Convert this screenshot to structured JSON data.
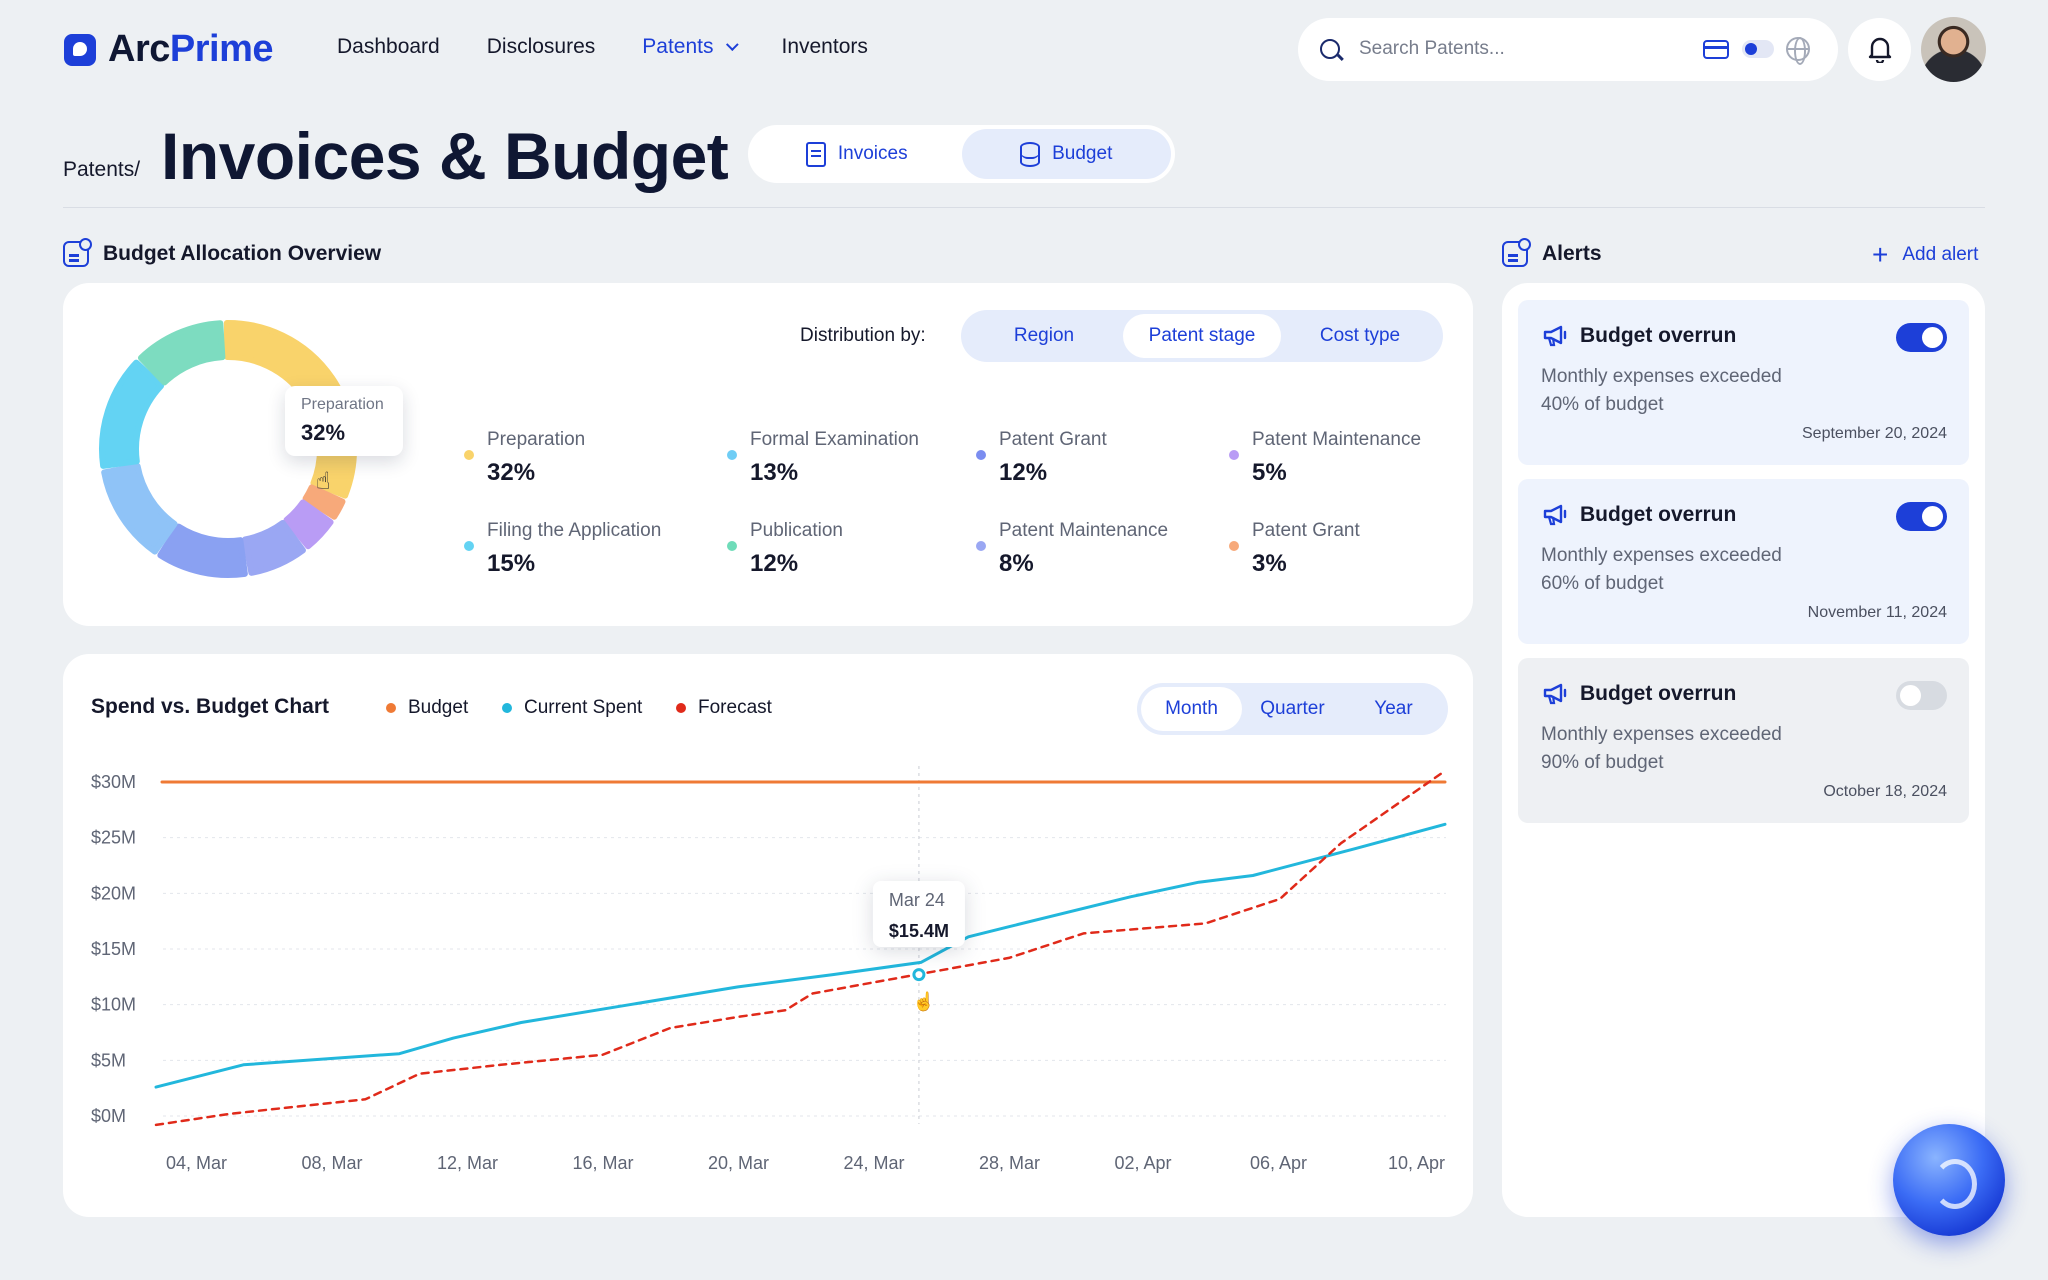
{
  "brand": {
    "name_a": "Arc",
    "name_b": "Prime"
  },
  "nav": {
    "items": [
      "Dashboard",
      "Disclosures",
      "Patents",
      "Inventors"
    ],
    "active": "Patents"
  },
  "search": {
    "placeholder": "Search Patents..."
  },
  "breadcrumb": "Patents/",
  "page_title": "Invoices & Budget",
  "view_tabs": [
    {
      "label": "Invoices",
      "icon": "document-icon"
    },
    {
      "label": "Budget",
      "icon": "database-icon",
      "selected": true
    }
  ],
  "allocation": {
    "heading": "Budget Allocation Overview",
    "distribution_label": "Distribution by:",
    "distribution_options": [
      "Region",
      "Patent stage",
      "Cost type"
    ],
    "distribution_selected": "Patent stage",
    "tooltip": {
      "label": "Preparation",
      "value": "32%"
    },
    "legend": [
      {
        "name": "Preparation",
        "pct": "32%",
        "color": "#f9d36b"
      },
      {
        "name": "Formal Examination",
        "pct": "13%",
        "color": "#6fcdf5"
      },
      {
        "name": "Patent Grant",
        "pct": "12%",
        "color": "#7b8df0"
      },
      {
        "name": "Patent Maintenance",
        "pct": "5%",
        "color": "#b99cf5"
      },
      {
        "name": "Filing the Application",
        "pct": "15%",
        "color": "#63d3f3"
      },
      {
        "name": "Publication",
        "pct": "12%",
        "color": "#6fdcb9"
      },
      {
        "name": "Patent Maintenance",
        "pct": "8%",
        "color": "#9aa7f3"
      },
      {
        "name": "Patent Grant",
        "pct": "3%",
        "color": "#f7a97a"
      }
    ]
  },
  "spend": {
    "title": "Spend vs. Budget Chart",
    "legend": [
      {
        "name": "Budget",
        "color": "#ef7a35"
      },
      {
        "name": "Current Spent",
        "color": "#22b7dc"
      },
      {
        "name": "Forecast",
        "color": "#e02a1a"
      }
    ],
    "range_options": [
      "Month",
      "Quarter",
      "Year"
    ],
    "range_selected": "Month",
    "tooltip": {
      "date": "Mar 24",
      "value": "$15.4M"
    }
  },
  "chart_data": {
    "type": "line",
    "title": "Spend vs. Budget Chart",
    "x_labels": [
      "04, Mar",
      "08, Mar",
      "12, Mar",
      "16, Mar",
      "20, Mar",
      "24, Mar",
      "28, Mar",
      "02, Apr",
      "06, Apr",
      "10, Apr"
    ],
    "y_ticks": [
      "$0M",
      "$5M",
      "$10M",
      "$15M",
      "$20M",
      "$25M",
      "$30M"
    ],
    "ylim": [
      0,
      30
    ],
    "series": [
      {
        "name": "Budget",
        "x": [
          0,
          9.4
        ],
        "values": [
          30,
          30
        ]
      },
      {
        "name": "Current Spent",
        "x": [
          -0.25,
          0.35,
          1.5,
          1.9,
          2.4,
          3.2,
          4.0,
          4.7,
          5.35,
          5.7,
          6.0,
          6.9,
          7.4,
          7.8,
          8.55,
          9.4
        ],
        "values": [
          2.6,
          4.6,
          5.6,
          7.0,
          8.4,
          10.0,
          11.6,
          12.7,
          13.8,
          16.1,
          17.0,
          19.7,
          21.0,
          21.6,
          24.0,
          26.2
        ]
      },
      {
        "name": "Forecast",
        "x": [
          -0.25,
          0.25,
          1.25,
          1.65,
          2.25,
          3.0,
          3.5,
          4.0,
          4.35,
          4.55,
          5.0,
          5.5,
          6.0,
          6.55,
          7.45,
          8.0,
          8.45,
          9.4
        ],
        "values": [
          -0.8,
          0.2,
          1.5,
          3.8,
          4.6,
          5.5,
          7.9,
          8.9,
          9.5,
          11.0,
          12.0,
          13.1,
          14.2,
          16.4,
          17.3,
          19.5,
          24.5,
          31.0
        ]
      }
    ],
    "highlight": {
      "date": "Mar 24",
      "value": 15.4
    }
  },
  "alerts": {
    "heading": "Alerts",
    "add_label": "Add alert",
    "items": [
      {
        "title": "Budget overrun",
        "desc": "Monthly expenses exceeded 40% of budget",
        "date": "September 20, 2024",
        "enabled": true
      },
      {
        "title": "Budget overrun",
        "desc": "Monthly expenses exceeded 60% of budget",
        "date": "November 11, 2024",
        "enabled": true
      },
      {
        "title": "Budget overrun",
        "desc": "Monthly expenses exceeded 90% of budget",
        "date": "October 18, 2024",
        "enabled": false
      }
    ]
  },
  "donut_segments": [
    {
      "name": "Preparation",
      "value": 32,
      "color": "#f9d36b"
    },
    {
      "name": "Patent Grant",
      "value": 3,
      "color": "#f7a97a"
    },
    {
      "name": "Patent Maintenance",
      "value": 5,
      "color": "#b99cf5"
    },
    {
      "name": "Patent Maintenance",
      "value": 8,
      "color": "#9aa7f3"
    },
    {
      "name": "Patent Grant",
      "value": 12,
      "color": "#8aa1f2"
    },
    {
      "name": "Formal Examination",
      "value": 13,
      "color": "#8fc3f7"
    },
    {
      "name": "Filing the Application",
      "value": 15,
      "color": "#63d3f3"
    },
    {
      "name": "Publication",
      "value": 12,
      "color": "#7ddcc0"
    }
  ]
}
